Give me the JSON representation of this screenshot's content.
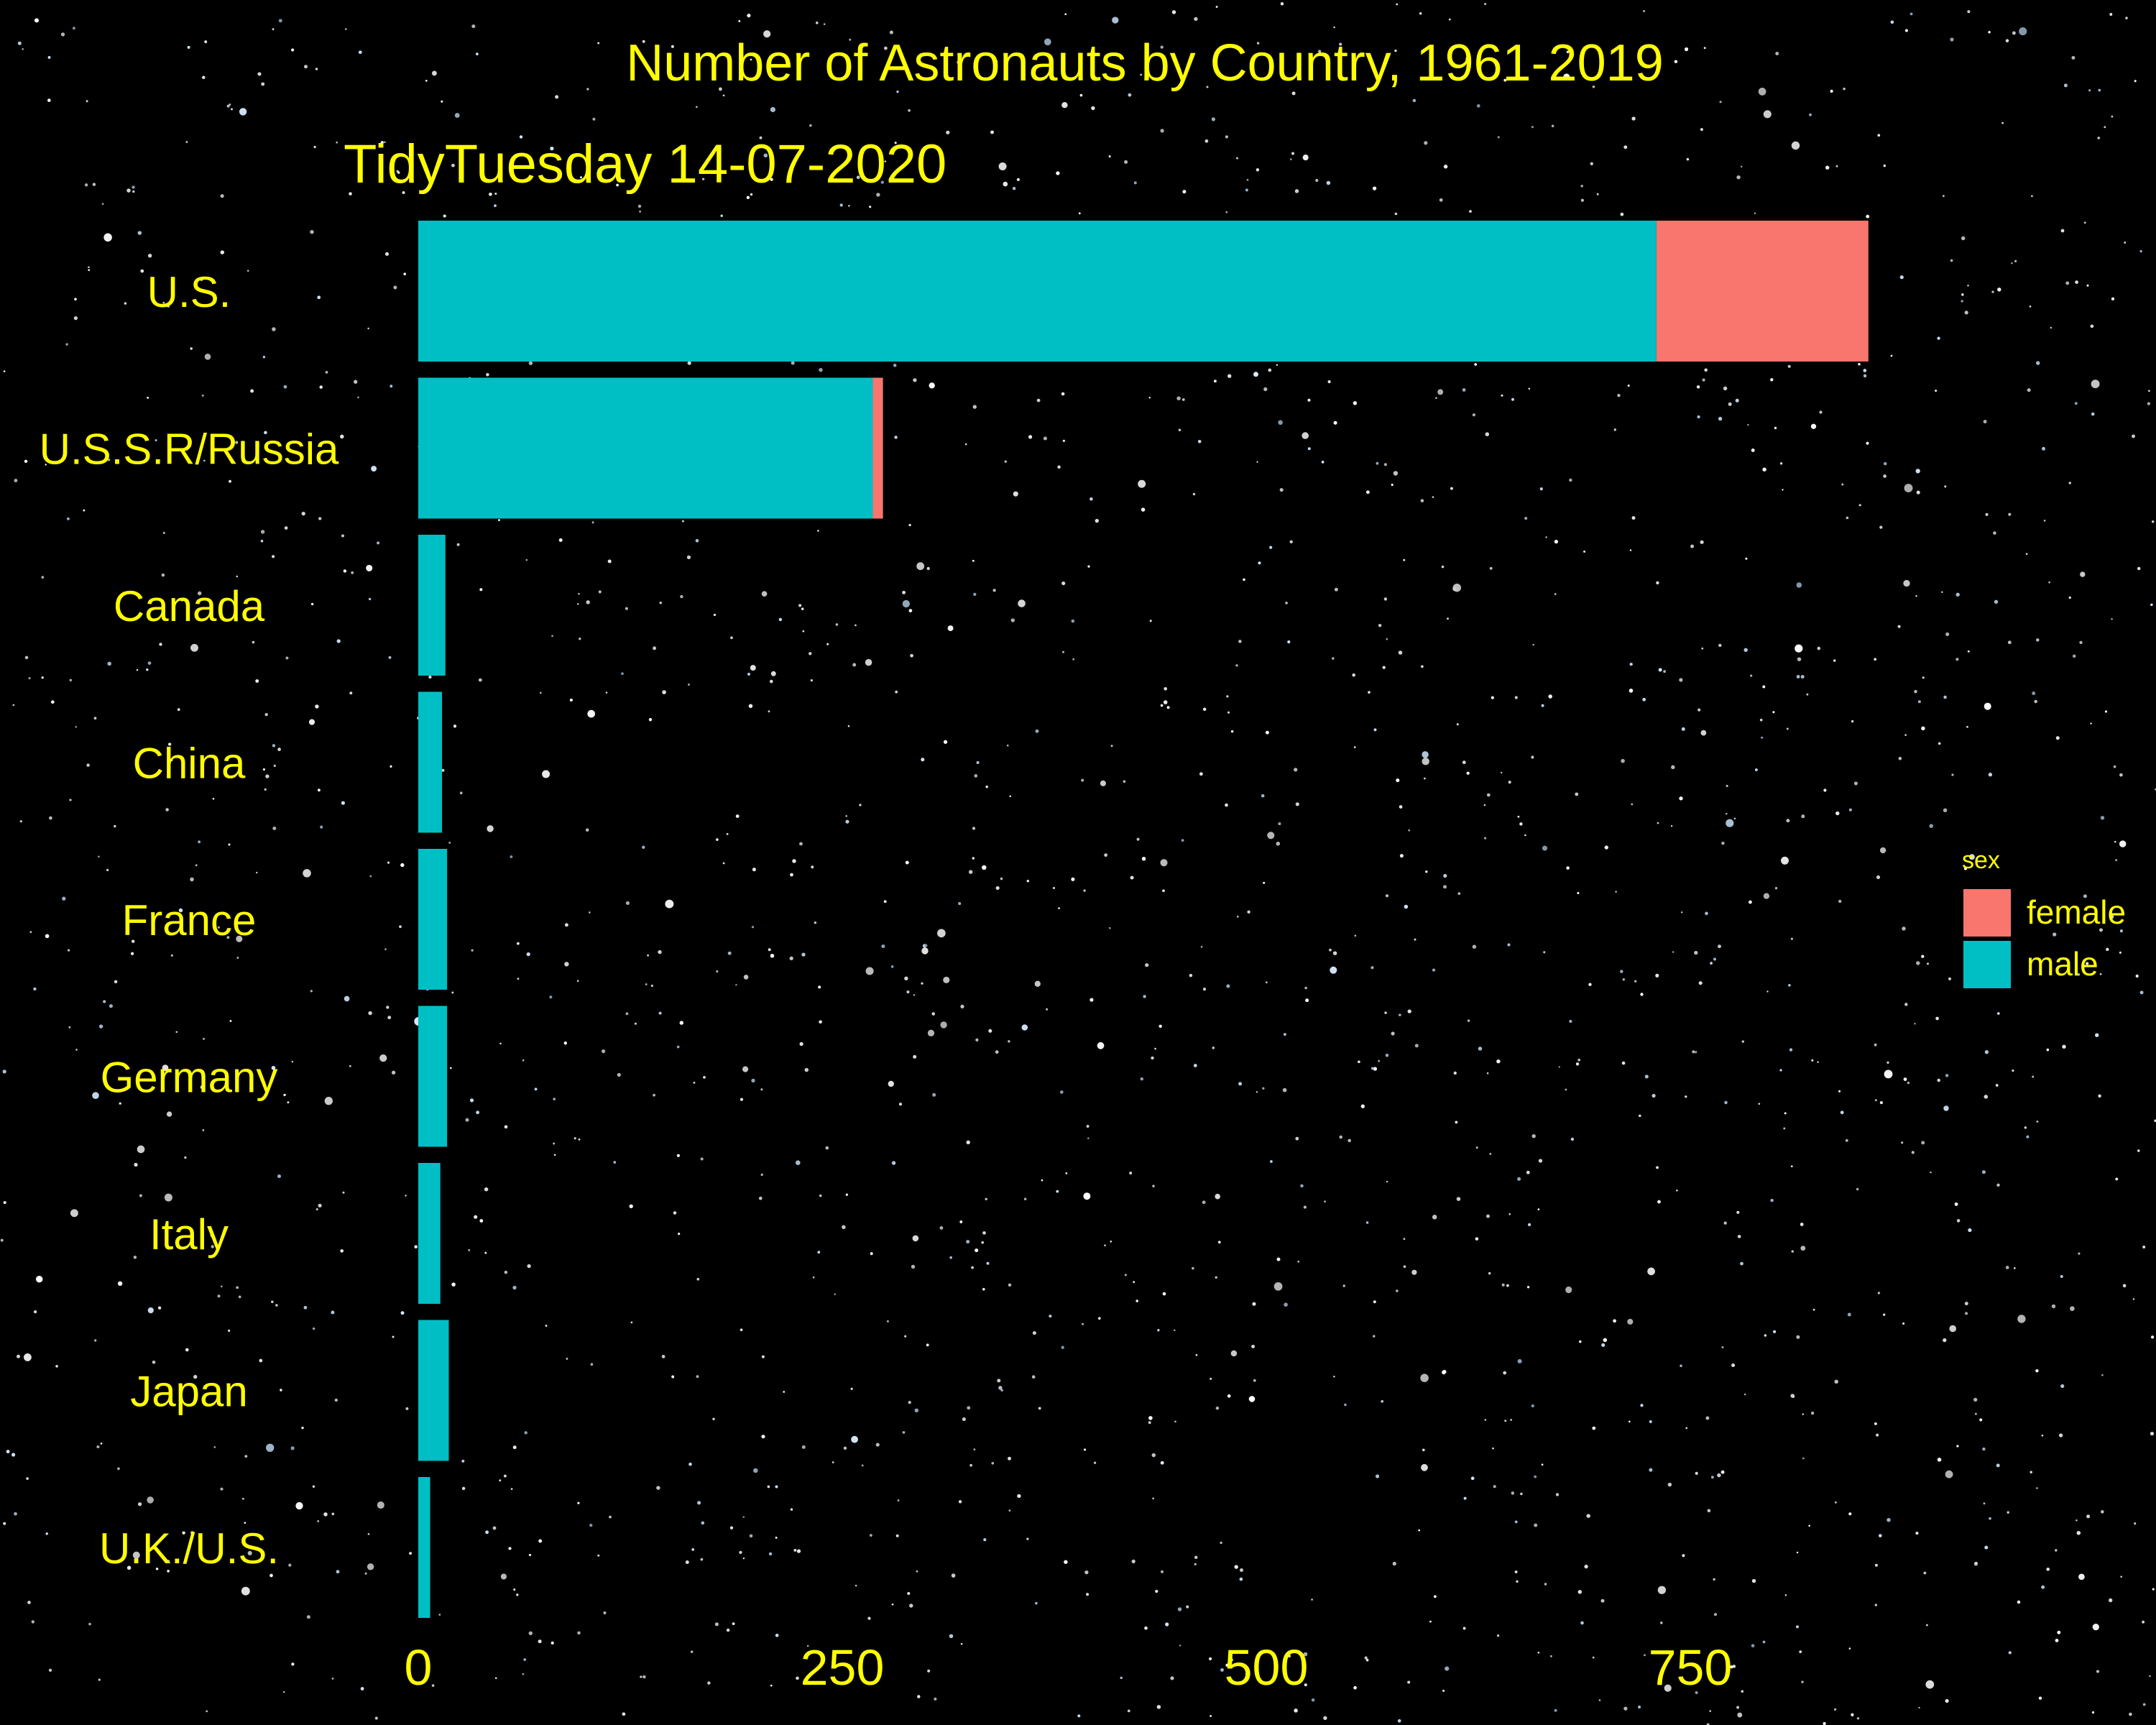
{
  "chart_data": {
    "type": "bar",
    "orientation": "horizontal",
    "stacked": true,
    "title": "Number of Astronauts by Country, 1961-2019",
    "subtitle": "TidyTuesday 14-07-2020",
    "xlabel": "",
    "ylabel": "",
    "categories": [
      "U.S.",
      "U.S.S.R/Russia",
      "Canada",
      "China",
      "France",
      "Germany",
      "Italy",
      "Japan",
      "U.K./U.S."
    ],
    "series": [
      {
        "name": "male",
        "color": "#00BFC4",
        "values": [
          730,
          268,
          16,
          14,
          17,
          17,
          13,
          18,
          7
        ]
      },
      {
        "name": "female",
        "color": "#F8766D",
        "values": [
          125,
          6,
          0,
          0,
          0,
          0,
          0,
          0,
          0
        ]
      }
    ],
    "x_ticks": [
      0,
      250,
      500,
      750
    ],
    "xlim": [
      0,
      900
    ],
    "legend": {
      "title": "sex",
      "position": "right",
      "order": [
        "female",
        "male"
      ]
    },
    "grid": false,
    "background": "starry night sky",
    "text_color": "#FFFF00"
  }
}
